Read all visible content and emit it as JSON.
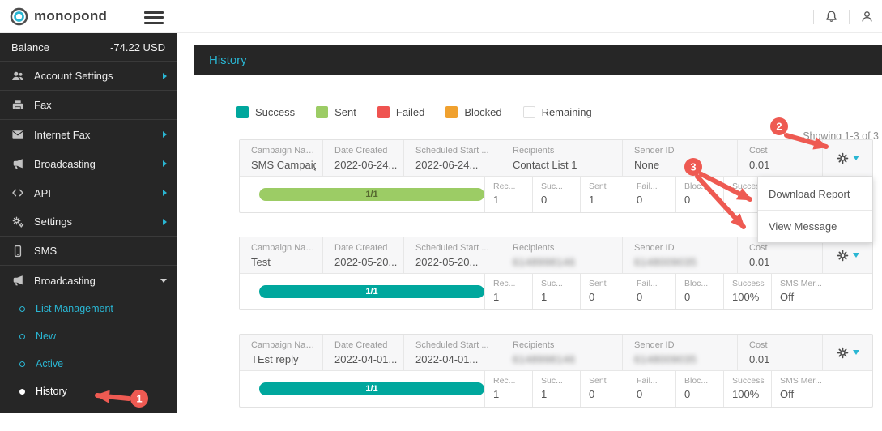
{
  "topbar": {
    "brand": "monopond"
  },
  "sidebar": {
    "balance_label": "Balance",
    "balance_value": "-74.22 USD",
    "items": [
      {
        "id": "account-settings",
        "label": "Account Settings",
        "icon": "users-icon",
        "caret": "right"
      },
      {
        "id": "fax",
        "label": "Fax",
        "icon": "fax-icon",
        "caret": ""
      },
      {
        "id": "internet-fax",
        "label": "Internet Fax",
        "icon": "envelope-icon",
        "caret": "right"
      },
      {
        "id": "broadcasting",
        "label": "Broadcasting",
        "icon": "megaphone-icon",
        "caret": "right"
      },
      {
        "id": "api",
        "label": "API",
        "icon": "code-icon",
        "caret": "right"
      },
      {
        "id": "settings",
        "label": "Settings",
        "icon": "gears-icon",
        "caret": "right"
      },
      {
        "id": "sms",
        "label": "SMS",
        "icon": "mobile-icon",
        "caret": ""
      },
      {
        "id": "sms-broadcasting",
        "label": "Broadcasting",
        "icon": "megaphone-icon",
        "caret": "down"
      }
    ],
    "submenu": [
      {
        "id": "list-management",
        "label": "List Management",
        "active": false
      },
      {
        "id": "new",
        "label": "New",
        "active": false
      },
      {
        "id": "active",
        "label": "Active",
        "active": false
      },
      {
        "id": "history",
        "label": "History",
        "active": true
      }
    ]
  },
  "page": {
    "title": "History",
    "showing": "Showing 1-3 of 3"
  },
  "legend": [
    {
      "label": "Success",
      "color": "#00a79d"
    },
    {
      "label": "Sent",
      "color": "#9ccc65"
    },
    {
      "label": "Failed",
      "color": "#ef5350"
    },
    {
      "label": "Blocked",
      "color": "#f0a12f"
    },
    {
      "label": "Remaining",
      "color": "#ffffff"
    }
  ],
  "campaigns": [
    {
      "fields": [
        {
          "label": "Campaign Name",
          "value": "SMS Campaig...",
          "redacted": false
        },
        {
          "label": "Date Created",
          "value": "2022-06-24...",
          "redacted": false
        },
        {
          "label": "Scheduled Start ...",
          "value": "2022-06-24...",
          "redacted": false
        },
        {
          "label": "Recipients",
          "value": "Contact List 1",
          "redacted": false
        },
        {
          "label": "Sender ID",
          "value": "None",
          "redacted": false
        },
        {
          "label": "Cost",
          "value": "0.01",
          "redacted": false
        }
      ],
      "progress": {
        "text": "1/1",
        "color": "#9ccc65",
        "text_color": "#55672f"
      },
      "stats": [
        {
          "label": "Rec...",
          "value": "1"
        },
        {
          "label": "Suc...",
          "value": "0"
        },
        {
          "label": "Sent",
          "value": "1"
        },
        {
          "label": "Fail...",
          "value": "0"
        },
        {
          "label": "Bloc...",
          "value": "0"
        },
        {
          "label": "Success ...",
          "value": ""
        },
        {
          "label": "SMS Mer...",
          "value": ""
        }
      ]
    },
    {
      "fields": [
        {
          "label": "Campaign Name",
          "value": "Test",
          "redacted": false
        },
        {
          "label": "Date Created",
          "value": "2022-05-20...",
          "redacted": false
        },
        {
          "label": "Scheduled Start ...",
          "value": "2022-05-20...",
          "redacted": false
        },
        {
          "label": "Recipients",
          "value": "6148998146",
          "redacted": true
        },
        {
          "label": "Sender ID",
          "value": "6148009035",
          "redacted": true
        },
        {
          "label": "Cost",
          "value": "0.01",
          "redacted": false
        }
      ],
      "progress": {
        "text": "1/1",
        "color": "#00a79d",
        "text_color": "#ffffff"
      },
      "stats": [
        {
          "label": "Rec...",
          "value": "1"
        },
        {
          "label": "Suc...",
          "value": "1"
        },
        {
          "label": "Sent",
          "value": "0"
        },
        {
          "label": "Fail...",
          "value": "0"
        },
        {
          "label": "Bloc...",
          "value": "0"
        },
        {
          "label": "Success ...",
          "value": "100%"
        },
        {
          "label": "SMS Mer...",
          "value": "Off"
        }
      ]
    },
    {
      "fields": [
        {
          "label": "Campaign Name",
          "value": "TEst reply",
          "redacted": false
        },
        {
          "label": "Date Created",
          "value": "2022-04-01...",
          "redacted": false
        },
        {
          "label": "Scheduled Start ...",
          "value": "2022-04-01...",
          "redacted": false
        },
        {
          "label": "Recipients",
          "value": "6148998146",
          "redacted": true
        },
        {
          "label": "Sender ID",
          "value": "6148009035",
          "redacted": true
        },
        {
          "label": "Cost",
          "value": "0.01",
          "redacted": false
        }
      ],
      "progress": {
        "text": "1/1",
        "color": "#00a79d",
        "text_color": "#ffffff"
      },
      "stats": [
        {
          "label": "Rec...",
          "value": "1"
        },
        {
          "label": "Suc...",
          "value": "1"
        },
        {
          "label": "Sent",
          "value": "0"
        },
        {
          "label": "Fail...",
          "value": "0"
        },
        {
          "label": "Bloc...",
          "value": "0"
        },
        {
          "label": "Success ...",
          "value": "100%"
        },
        {
          "label": "SMS Mer...",
          "value": "Off"
        }
      ]
    }
  ],
  "action_menu": {
    "items": [
      "Download Report",
      "View Message"
    ]
  },
  "annotations": {
    "steps": [
      "1",
      "2",
      "3"
    ]
  },
  "colors": {
    "accent": "#2ab6d3",
    "sidebar_bg": "#262626",
    "annotation_red": "#ee5a52",
    "success": "#00a79d",
    "sent": "#9ccc65",
    "failed": "#ef5350",
    "blocked": "#f0a12f"
  }
}
